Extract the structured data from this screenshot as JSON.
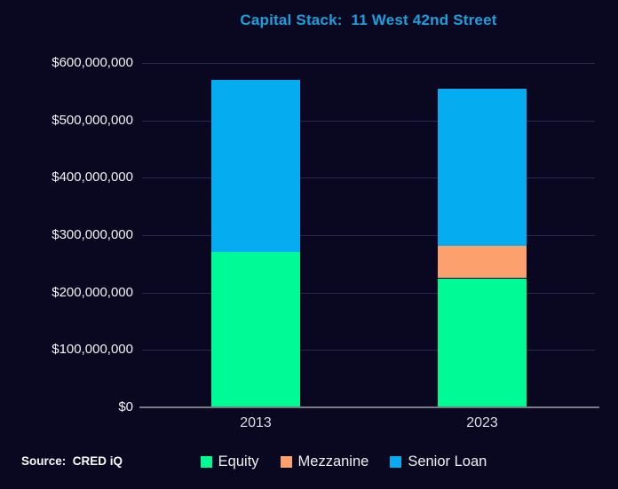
{
  "title": "Capital Stack:  11 West 42nd Street",
  "source_note": "Source:  CRED iQ",
  "colors": {
    "background": "#0a0721",
    "gridline": "#222b52",
    "axis_line": "#7a7a82",
    "title_text": "#1ba0dc",
    "axis_label_text": "#f2f2f2",
    "equity": "#00fb96",
    "mezzanine": "#fca16e",
    "senior_loan": "#05acf0"
  },
  "chart_data": {
    "type": "bar",
    "stacked": true,
    "title": "Capital Stack:  11 West 42nd Street",
    "categories": [
      "2013",
      "2023"
    ],
    "series": [
      {
        "name": "Equity",
        "color": "#00fb96",
        "values": [
          270000000,
          225000000
        ]
      },
      {
        "name": "Mezzanine",
        "color": "#fca16e",
        "values": [
          0,
          56000000
        ]
      },
      {
        "name": "Senior Loan",
        "color": "#05acf0",
        "values": [
          300000000,
          274000000
        ]
      }
    ],
    "totals": [
      570000000,
      555000000
    ],
    "ylim": [
      0,
      600000000
    ],
    "ytick_step": 100000000,
    "ytick_labels": [
      "$0",
      "$100,000,000",
      "$200,000,000",
      "$300,000,000",
      "$400,000,000",
      "$500,000,000",
      "$600,000,000"
    ],
    "xlabel": "",
    "ylabel": "",
    "grid": true,
    "legend_position": "bottom"
  }
}
